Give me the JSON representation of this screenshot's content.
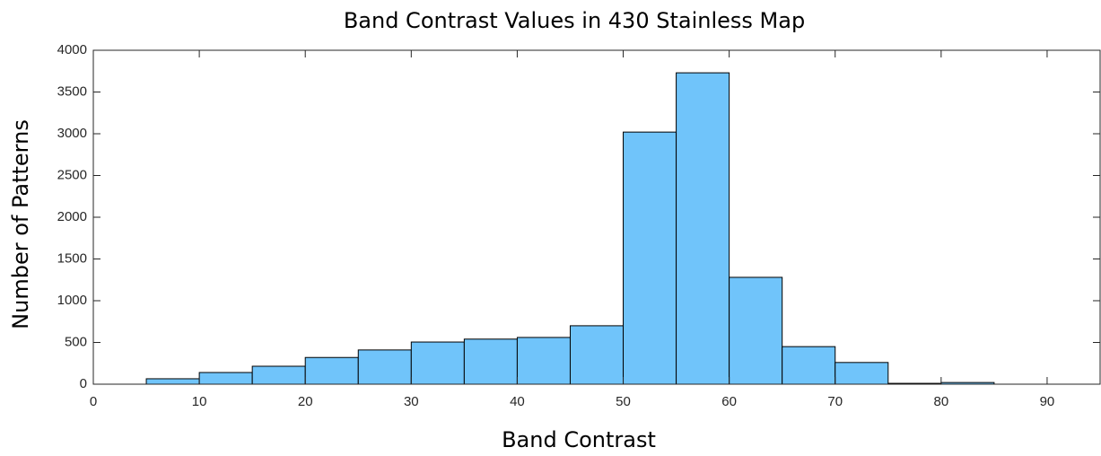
{
  "chart_data": {
    "type": "histogram",
    "title": "Band Contrast Values in 430 Stainless Map",
    "x_label": "Band Contrast",
    "y_label": "Number of Patterns",
    "bins": [
      5,
      10,
      15,
      20,
      25,
      30,
      35,
      40,
      45,
      50,
      55,
      60,
      65,
      70,
      75,
      80,
      85
    ],
    "values": [
      65,
      140,
      215,
      320,
      410,
      505,
      540,
      560,
      700,
      3020,
      3730,
      1280,
      450,
      260,
      10,
      20
    ],
    "color": "#70c4fa",
    "xlim": [
      0,
      95
    ],
    "xticks": [
      0,
      10,
      20,
      30,
      40,
      50,
      60,
      70,
      80,
      90
    ],
    "ylim": [
      0,
      4000
    ],
    "yticks": [
      0,
      500,
      1000,
      1500,
      2000,
      2500,
      3000,
      3500,
      4000
    ]
  }
}
